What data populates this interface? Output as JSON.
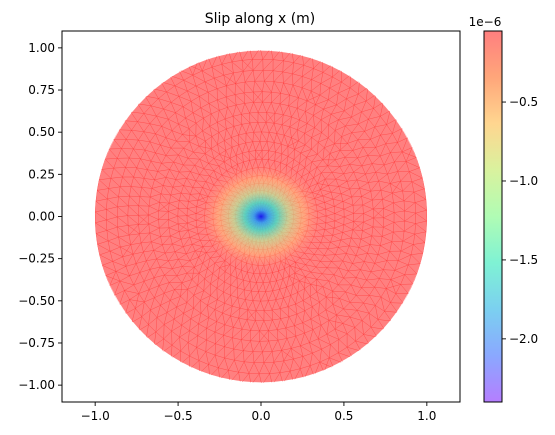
{
  "chart_data": {
    "type": "heatmap",
    "title": "Slip along x (m)",
    "xlabel": "",
    "ylabel": "",
    "xlim": [
      -1.2,
      1.2
    ],
    "ylim": [
      -1.1,
      1.1
    ],
    "x_ticks": [
      -1.0,
      -0.5,
      0.0,
      0.5,
      1.0
    ],
    "x_tick_labels": [
      "−1.0",
      "−0.5",
      "0.0",
      "0.5",
      "1.0"
    ],
    "y_ticks": [
      1.0,
      0.75,
      0.5,
      0.25,
      0.0,
      -0.25,
      -0.5,
      -0.75,
      -1.0
    ],
    "y_tick_labels": [
      "1.00",
      "0.75",
      "0.50",
      "0.25",
      "0.00",
      "−0.25",
      "−0.50",
      "−0.75",
      "−1.00"
    ],
    "domain": {
      "shape": "disk",
      "center": [
        0.0,
        0.0
      ],
      "radius": 1.0
    },
    "mesh": "triangular, refined toward center",
    "field": {
      "min": -2.4e-06,
      "max": 0.0,
      "peak_location": [
        0.0,
        0.0
      ],
      "description": "slip is most negative at the center and rises to about 0 toward the edge"
    },
    "colormap": "rainbow",
    "alpha": 0.5,
    "colorbar": {
      "range": [
        -2.4e-06,
        -5e-08
      ],
      "ticks": [
        -0.5,
        -1.0,
        -1.5,
        -2.0
      ],
      "tick_labels": [
        "−0.5",
        "−1.0",
        "−1.5",
        "−2.0"
      ],
      "offset_label": "1e−6"
    },
    "grid": false,
    "colors": {
      "edge": "#ff3b3b",
      "background": "#ffffff",
      "axes": "#000000"
    }
  }
}
